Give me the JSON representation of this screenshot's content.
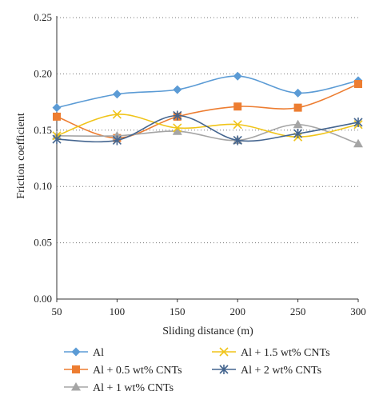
{
  "chart_data": {
    "type": "line",
    "title": "",
    "xlabel": "Sliding distance (m)",
    "ylabel": "Friction coefficient",
    "x": [
      50,
      100,
      150,
      200,
      250,
      300
    ],
    "xlim": [
      50,
      300
    ],
    "ylim": [
      0.0,
      0.25
    ],
    "xticks": [
      "50",
      "100",
      "150",
      "200",
      "250",
      "300"
    ],
    "yticks": [
      "0.00",
      "0.05",
      "0.10",
      "0.15",
      "0.20",
      "0.25"
    ],
    "grid": "horizontal-dotted",
    "legend_position": "bottom",
    "series": [
      {
        "name": "Al",
        "values": [
          0.17,
          0.182,
          0.186,
          0.198,
          0.183,
          0.194
        ],
        "color": "#5b9bd5",
        "marker": "diamond"
      },
      {
        "name": "Al + 0.5 wt% CNTs",
        "values": [
          0.162,
          0.143,
          0.162,
          0.171,
          0.17,
          0.191
        ],
        "color": "#ed7d31",
        "marker": "square"
      },
      {
        "name": "Al + 1 wt% CNTs",
        "values": [
          0.145,
          0.145,
          0.149,
          0.141,
          0.155,
          0.138
        ],
        "color": "#a5a5a5",
        "marker": "triangle"
      },
      {
        "name": "Al + 1.5 wt% CNTs",
        "values": [
          0.145,
          0.164,
          0.152,
          0.155,
          0.144,
          0.155
        ],
        "color": "#f0c419",
        "marker": "x"
      },
      {
        "name": "Al + 2 wt% CNTs",
        "values": [
          0.142,
          0.141,
          0.163,
          0.141,
          0.147,
          0.157
        ],
        "color": "#44658f",
        "marker": "star"
      }
    ]
  }
}
